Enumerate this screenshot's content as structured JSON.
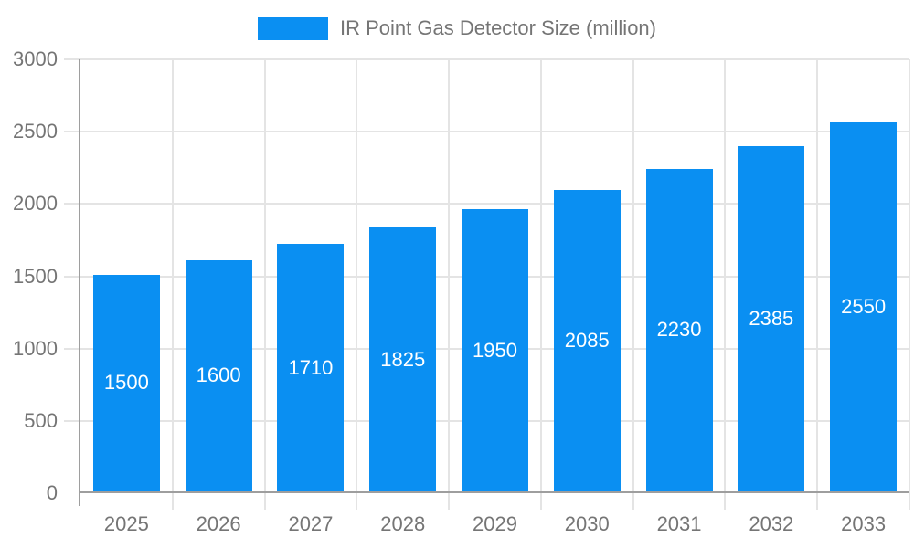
{
  "chart_data": {
    "type": "bar",
    "title": "IR Point Gas Detector Size (million)",
    "categories": [
      "2025",
      "2026",
      "2027",
      "2028",
      "2029",
      "2030",
      "2031",
      "2032",
      "2033"
    ],
    "values": [
      1500,
      1600,
      1710,
      1825,
      1950,
      2085,
      2230,
      2385,
      2550
    ],
    "series": [
      {
        "name": "IR Point Gas Detector Size (million)",
        "values": [
          1500,
          1600,
          1710,
          1825,
          1950,
          2085,
          2230,
          2385,
          2550
        ]
      }
    ],
    "xlabel": "",
    "ylabel": "",
    "ylim": [
      0,
      3000
    ],
    "ytick_step": 500,
    "grid": true,
    "legend_position": "top-center",
    "value_labels": "inside-center",
    "colors": {
      "bar": "#0a8ff2",
      "value_label": "#ffffff",
      "axis_text": "#757575",
      "axis_line": "#9e9e9e",
      "gridline": "#e4e4e4",
      "background": "#ffffff"
    }
  }
}
